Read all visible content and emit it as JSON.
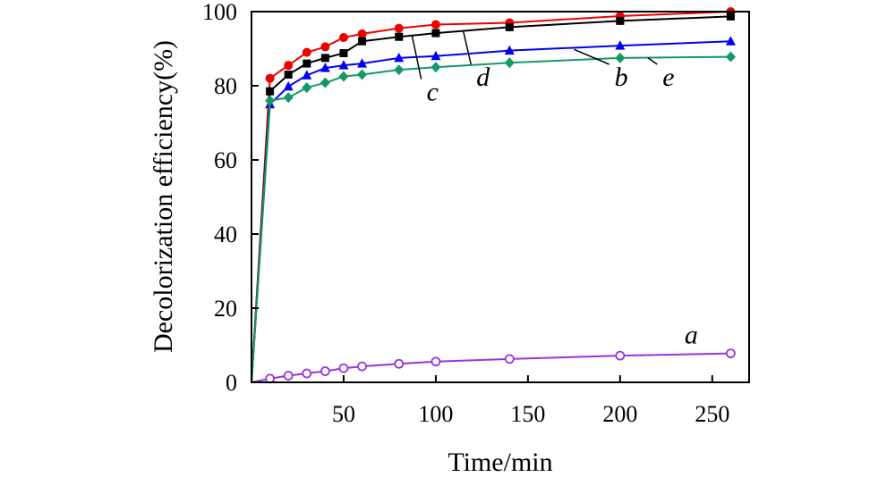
{
  "chart_data": {
    "type": "line",
    "title": "",
    "xlabel": "Time/min",
    "ylabel": "Decolorization efficiency(%)",
    "xlim": [
      0,
      270
    ],
    "ylim": [
      0,
      100
    ],
    "x_ticks": [
      50,
      100,
      150,
      200,
      250
    ],
    "x_tick_labels": [
      "50",
      "100",
      "150",
      "200",
      "250"
    ],
    "y_ticks": [
      0,
      20,
      40,
      60,
      80,
      100
    ],
    "y_tick_labels": [
      "0",
      "20",
      "40",
      "60",
      "80",
      "100"
    ],
    "grid": false,
    "legend": "none",
    "series": [
      {
        "name": "a",
        "color": "#9933dd",
        "marker": "open-circle",
        "x": [
          0,
          10,
          20,
          30,
          40,
          50,
          60,
          80,
          100,
          140,
          200,
          260
        ],
        "y": [
          0,
          1.0,
          1.8,
          2.4,
          3.0,
          3.8,
          4.3,
          5.0,
          5.6,
          6.3,
          7.2,
          7.8
        ],
        "label_point": [
          0.0,
          0.0
        ]
      },
      {
        "name": "b",
        "color": "#0000ee",
        "marker": "triangle",
        "x": [
          0,
          10,
          20,
          30,
          40,
          50,
          60,
          80,
          100,
          140,
          200,
          260
        ],
        "y": [
          0,
          75.0,
          79.8,
          82.8,
          84.8,
          85.5,
          86.0,
          87.5,
          88.0,
          89.5,
          90.8,
          92.0
        ]
      },
      {
        "name": "c",
        "color": "#ee0000",
        "marker": "circle",
        "x": [
          0,
          10,
          20,
          30,
          40,
          50,
          60,
          80,
          100,
          140,
          200,
          260
        ],
        "y": [
          0,
          82.0,
          85.5,
          89.0,
          90.5,
          93.0,
          94.0,
          95.5,
          96.5,
          97.0,
          98.8,
          100.0
        ]
      },
      {
        "name": "d",
        "color": "#000000",
        "marker": "square",
        "x": [
          0,
          10,
          20,
          30,
          40,
          50,
          60,
          80,
          100,
          140,
          200,
          260
        ],
        "y": [
          0,
          78.5,
          83.0,
          86.0,
          87.5,
          88.8,
          92.0,
          93.2,
          94.2,
          95.8,
          97.5,
          98.7
        ]
      },
      {
        "name": "e",
        "color": "#119966",
        "marker": "diamond",
        "x": [
          0,
          10,
          20,
          30,
          40,
          50,
          60,
          80,
          100,
          140,
          200,
          260
        ],
        "y": [
          0,
          76.0,
          76.8,
          79.5,
          80.8,
          82.5,
          83.0,
          84.3,
          85.0,
          86.2,
          87.5,
          87.8
        ]
      }
    ],
    "annotations": [
      {
        "text": "a",
        "series": "a",
        "x": 235,
        "y": 10.5,
        "pointer": null
      },
      {
        "text": "b",
        "series": "b",
        "x": 197,
        "y": 80,
        "pointer": [
          175,
          89.8
        ]
      },
      {
        "text": "c",
        "series": "c",
        "x": 95,
        "y": 76,
        "pointer": [
          87,
          93.8
        ]
      },
      {
        "text": "d",
        "series": "d",
        "x": 122,
        "y": 80,
        "pointer": [
          115,
          94.6
        ]
      },
      {
        "text": "e",
        "series": "e",
        "x": 223,
        "y": 80,
        "pointer": [
          215,
          87.6
        ]
      }
    ]
  }
}
